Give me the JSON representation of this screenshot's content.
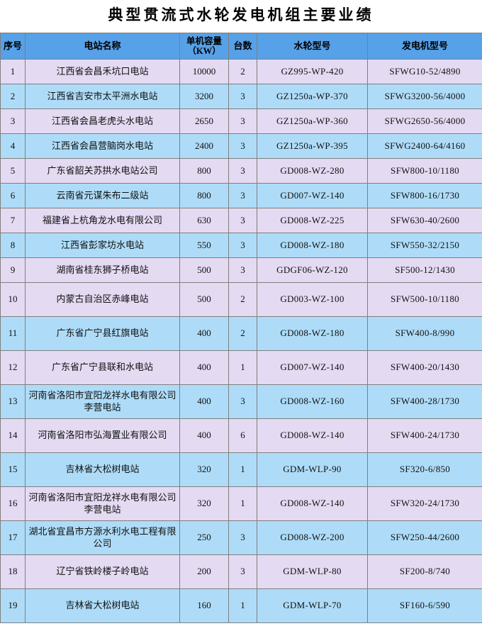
{
  "page_title": "典型贯流式水轮发电机组主要业绩",
  "colors": {
    "header_bg": "#57a1e8",
    "row_blue": "#aedcf8",
    "row_lavender": "#e4daf2",
    "border": "#7f7f7f",
    "title_text": "#000000",
    "body_text": "#111111",
    "page_bg": "#ffffff"
  },
  "table": {
    "columns": [
      {
        "label": "序号"
      },
      {
        "label": "电站名称"
      },
      {
        "label": "单机容量",
        "label2": "（KW）"
      },
      {
        "label": "台数"
      },
      {
        "label": "水轮型号"
      },
      {
        "label": "发电机型号"
      }
    ],
    "rows": [
      {
        "no": "1",
        "name": "江西省会昌禾坑口电站",
        "capacity": "10000",
        "units": "2",
        "turbine": "GZ995-WP-420",
        "generator": "SFWG10-52/4890"
      },
      {
        "no": "2",
        "name": "江西省吉安市太平洲水电站",
        "capacity": "3200",
        "units": "3",
        "turbine": "GZ1250a-WP-370",
        "generator": "SFWG3200-56/4000"
      },
      {
        "no": "3",
        "name": "江西省会昌老虎头水电站",
        "capacity": "2650",
        "units": "3",
        "turbine": "GZ1250a-WP-360",
        "generator": "SFWG2650-56/4000"
      },
      {
        "no": "4",
        "name": "江西省会昌营脑岗水电站",
        "capacity": "2400",
        "units": "3",
        "turbine": "GZ1250a-WP-395",
        "generator": "SFWG2400-64/4160"
      },
      {
        "no": "5",
        "name": "广东省韶关苏拱水电站公司",
        "capacity": "800",
        "units": "3",
        "turbine": "GD008-WZ-280",
        "generator": "SFW800-10/1180"
      },
      {
        "no": "6",
        "name": "云南省元谋朱布二级站",
        "capacity": "800",
        "units": "3",
        "turbine": "GD007-WZ-140",
        "generator": "SFW800-16/1730"
      },
      {
        "no": "7",
        "name": "福建省上杭角龙水电有限公司",
        "capacity": "630",
        "units": "3",
        "turbine": "GD008-WZ-225",
        "generator": "SFW630-40/2600"
      },
      {
        "no": "8",
        "name": "江西省彭家坊水电站",
        "capacity": "550",
        "units": "3",
        "turbine": "GD008-WZ-180",
        "generator": "SFW550-32/2150"
      },
      {
        "no": "9",
        "name": "湖南省桂东狮子桥电站",
        "capacity": "500",
        "units": "3",
        "turbine": "GDGF06-WZ-120",
        "generator": "SF500-12/1430"
      },
      {
        "no": "10",
        "name": "内蒙古自治区赤峰电站",
        "capacity": "500",
        "units": "2",
        "turbine": "GD003-WZ-100",
        "generator": "SFW500-10/1180"
      },
      {
        "no": "11",
        "name": "广东省广宁县红旗电站",
        "capacity": "400",
        "units": "2",
        "turbine": "GD008-WZ-180",
        "generator": "SFW400-8/990"
      },
      {
        "no": "12",
        "name": "广东省广宁县联和水电站",
        "capacity": "400",
        "units": "1",
        "turbine": "GD007-WZ-140",
        "generator": "SFW400-20/1430"
      },
      {
        "no": "13",
        "name": "河南省洛阳市宜阳龙祥水电有限公司李营电站",
        "capacity": "400",
        "units": "3",
        "turbine": "GD008-WZ-160",
        "generator": "SFW400-28/1730"
      },
      {
        "no": "14",
        "name": "河南省洛阳市弘海置业有限公司",
        "capacity": "400",
        "units": "6",
        "turbine": "GD008-WZ-140",
        "generator": "SFW400-24/1730"
      },
      {
        "no": "15",
        "name": "吉林省大松树电站",
        "capacity": "320",
        "units": "1",
        "turbine": "GDM-WLP-90",
        "generator": "SF320-6/850"
      },
      {
        "no": "16",
        "name": "河南省洛阳市宜阳龙祥水电有限公司李营电站",
        "capacity": "320",
        "units": "1",
        "turbine": "GD008-WZ-140",
        "generator": "SFW320-24/1730"
      },
      {
        "no": "17",
        "name": "湖北省宜昌市方源水利水电工程有限公司",
        "capacity": "250",
        "units": "3",
        "turbine": "GD008-WZ-200",
        "generator": "SFW250-44/2600"
      },
      {
        "no": "18",
        "name": "辽宁省铁岭楼子岭电站",
        "capacity": "200",
        "units": "3",
        "turbine": "GDM-WLP-80",
        "generator": "SF200-8/740"
      },
      {
        "no": "19",
        "name": "吉林省大松树电站",
        "capacity": "160",
        "units": "1",
        "turbine": "GDM-WLP-70",
        "generator": "SF160-6/590"
      }
    ]
  }
}
